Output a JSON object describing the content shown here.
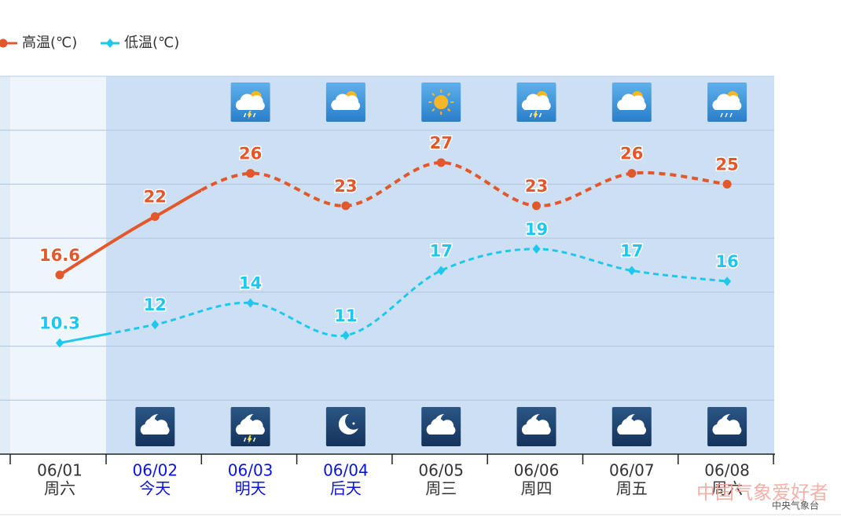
{
  "chart_data": {
    "type": "line",
    "categories": [
      "06/01",
      "06/02",
      "06/03",
      "06/04",
      "06/05",
      "06/06",
      "06/07",
      "06/08"
    ],
    "sublabels": [
      "周六",
      "今天",
      "明天",
      "后天",
      "周三",
      "周四",
      "周五",
      "周六"
    ],
    "label_colors": [
      "#333333",
      "#0a14d8",
      "#0a14d8",
      "#0a14d8",
      "#333333",
      "#333333",
      "#333333",
      "#333333"
    ],
    "series": [
      {
        "name": "高温(℃)",
        "color": "#e2572b",
        "marker": "circle",
        "values": [
          16.6,
          22,
          26,
          23,
          27,
          23,
          26,
          25
        ]
      },
      {
        "name": "低温(℃)",
        "color": "#1ec8ec",
        "marker": "diamond",
        "values": [
          10.3,
          12,
          14,
          11,
          17,
          19,
          17,
          16
        ]
      }
    ],
    "ylim": [
      0,
      35
    ],
    "yticks": [
      5,
      10,
      15,
      20,
      25,
      30
    ],
    "grid": true,
    "watermark": "中国气象爱好者",
    "source": "中央气象台"
  }
}
